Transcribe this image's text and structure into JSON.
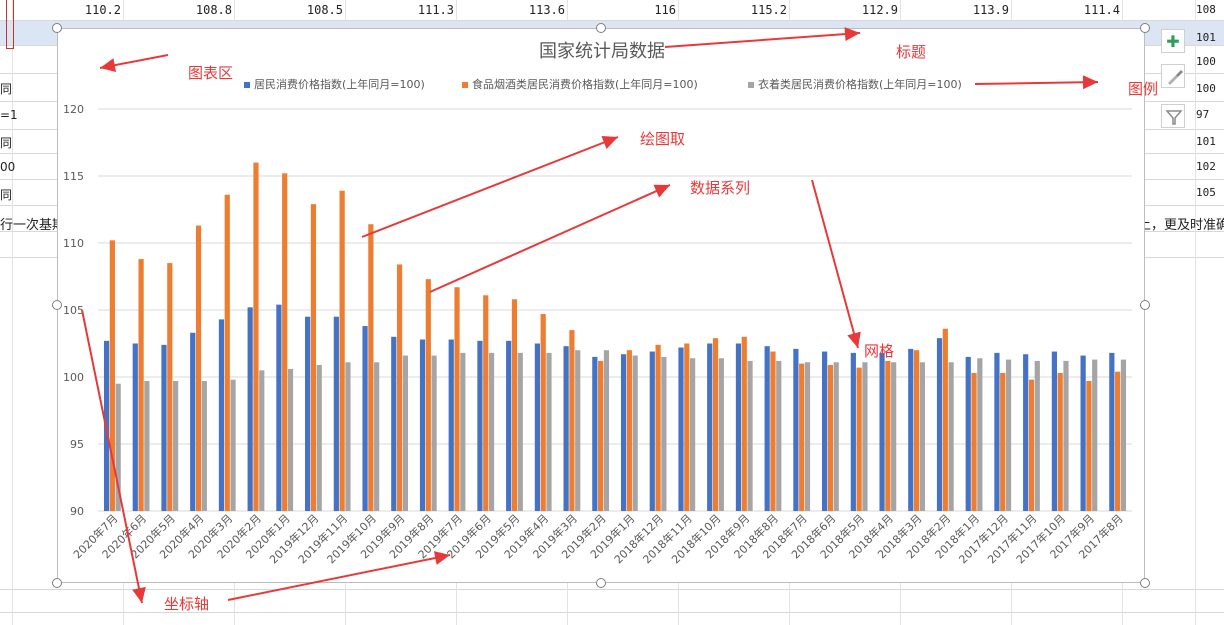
{
  "sheet": {
    "header_row_values": [
      "110.2",
      "108.8",
      "108.5",
      "111.3",
      "113.6",
      "116",
      "115.2",
      "112.9",
      "113.9",
      "111.4"
    ],
    "right_edge_values": [
      "108",
      "101",
      "100",
      "100",
      "97",
      "101",
      "102",
      "105"
    ],
    "left_edge_texts": [
      "同",
      "=1",
      "同",
      "00",
      "同"
    ],
    "note_left": "行一次基期",
    "note_right": "上，更及时准确"
  },
  "chart_data": {
    "type": "bar",
    "title": "国家统计局数据",
    "xlabel": "",
    "ylabel": "",
    "ylim": [
      90,
      120
    ],
    "yticks": [
      "120",
      "115",
      "110",
      "105",
      "100",
      "95",
      "90"
    ],
    "grid": true,
    "legend_position": "top",
    "categories": [
      "2020年7月",
      "2020年6月",
      "2020年5月",
      "2020年4月",
      "2020年3月",
      "2020年2月",
      "2020年1月",
      "2019年12月",
      "2019年11月",
      "2019年10月",
      "2019年9月",
      "2019年8月",
      "2019年7月",
      "2019年6月",
      "2019年5月",
      "2019年4月",
      "2019年3月",
      "2019年2月",
      "2019年1月",
      "2018年12月",
      "2018年11月",
      "2018年10月",
      "2018年9月",
      "2018年8月",
      "2018年7月",
      "2018年6月",
      "2018年5月",
      "2018年4月",
      "2018年3月",
      "2018年2月",
      "2018年1月",
      "2017年12月",
      "2017年11月",
      "2017年10月",
      "2017年9月",
      "2017年8月"
    ],
    "series": [
      {
        "name": "居民消费价格指数(上年同月=100)",
        "color": "#4472c4",
        "values": [
          102.7,
          102.5,
          102.4,
          103.3,
          104.3,
          105.2,
          105.4,
          104.5,
          104.5,
          103.8,
          103,
          102.8,
          102.8,
          102.7,
          102.7,
          102.5,
          102.3,
          101.5,
          101.7,
          101.9,
          102.2,
          102.5,
          102.5,
          102.3,
          102.1,
          101.9,
          101.8,
          101.8,
          102.1,
          102.9,
          101.5,
          101.8,
          101.7,
          101.9,
          101.6,
          101.8
        ]
      },
      {
        "name": "食品烟酒类居民消费价格指数(上年同月=100)",
        "color": "#ed7d31",
        "values": [
          110.2,
          108.8,
          108.5,
          111.3,
          113.6,
          116,
          115.2,
          112.9,
          113.9,
          111.4,
          108.4,
          107.3,
          106.7,
          106.1,
          105.8,
          104.7,
          103.5,
          101.2,
          102,
          102.4,
          102.5,
          102.9,
          103,
          101.9,
          101,
          100.9,
          100.7,
          101.2,
          102,
          103.6,
          100.3,
          100.3,
          99.8,
          100.3,
          99.7,
          100.4
        ]
      },
      {
        "name": "衣着类居民消费价格指数(上年同月=100)",
        "color": "#a5a5a5",
        "values": [
          99.5,
          99.7,
          99.7,
          99.7,
          99.8,
          100.5,
          100.6,
          100.9,
          101.1,
          101.1,
          101.6,
          101.6,
          101.8,
          101.8,
          101.8,
          101.8,
          102,
          102,
          101.6,
          101.5,
          101.4,
          101.4,
          101.2,
          101.2,
          101.1,
          101.1,
          101.1,
          101.1,
          101.1,
          101.1,
          101.4,
          101.3,
          101.2,
          101.2,
          101.3,
          101.3
        ]
      }
    ]
  },
  "annotations": {
    "chart_area": "图表区",
    "title": "标题",
    "legend": "图例",
    "plot_area": "绘图取",
    "data_series": "数据系列",
    "gridlines": "网格",
    "axis": "坐标轴"
  },
  "side_buttons": {
    "add_elements": "plus-icon",
    "styles": "brush-icon",
    "filter": "funnel-icon"
  },
  "colors": {
    "annotation_red": "#e8393a",
    "selection_blue": "#dbe5f4",
    "add_green": "#2e9e5b"
  }
}
